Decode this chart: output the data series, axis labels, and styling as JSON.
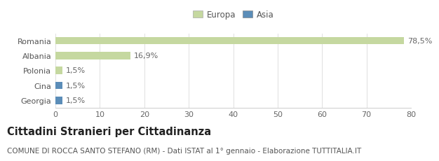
{
  "categories": [
    "Romania",
    "Albania",
    "Polonia",
    "Cina",
    "Georgia"
  ],
  "values": [
    78.5,
    16.9,
    1.5,
    1.5,
    1.5
  ],
  "colors": [
    "#c5d8a0",
    "#c5d8a0",
    "#c5d8a0",
    "#5b8db8",
    "#5b8db8"
  ],
  "labels": [
    "78,5%",
    "16,9%",
    "1,5%",
    "1,5%",
    "1,5%"
  ],
  "legend_europa_color": "#c5d8a0",
  "legend_asia_color": "#5b8db8",
  "xlim": [
    0,
    80
  ],
  "xticks": [
    0,
    10,
    20,
    30,
    40,
    50,
    60,
    70,
    80
  ],
  "title": "Cittadini Stranieri per Cittadinanza",
  "subtitle": "COMUNE DI ROCCA SANTO STEFANO (RM) - Dati ISTAT al 1° gennaio - Elaborazione TUTTITALIA.IT",
  "bg_color": "#ffffff",
  "bar_height": 0.5,
  "title_fontsize": 10.5,
  "subtitle_fontsize": 7.5,
  "label_fontsize": 8,
  "tick_fontsize": 8
}
